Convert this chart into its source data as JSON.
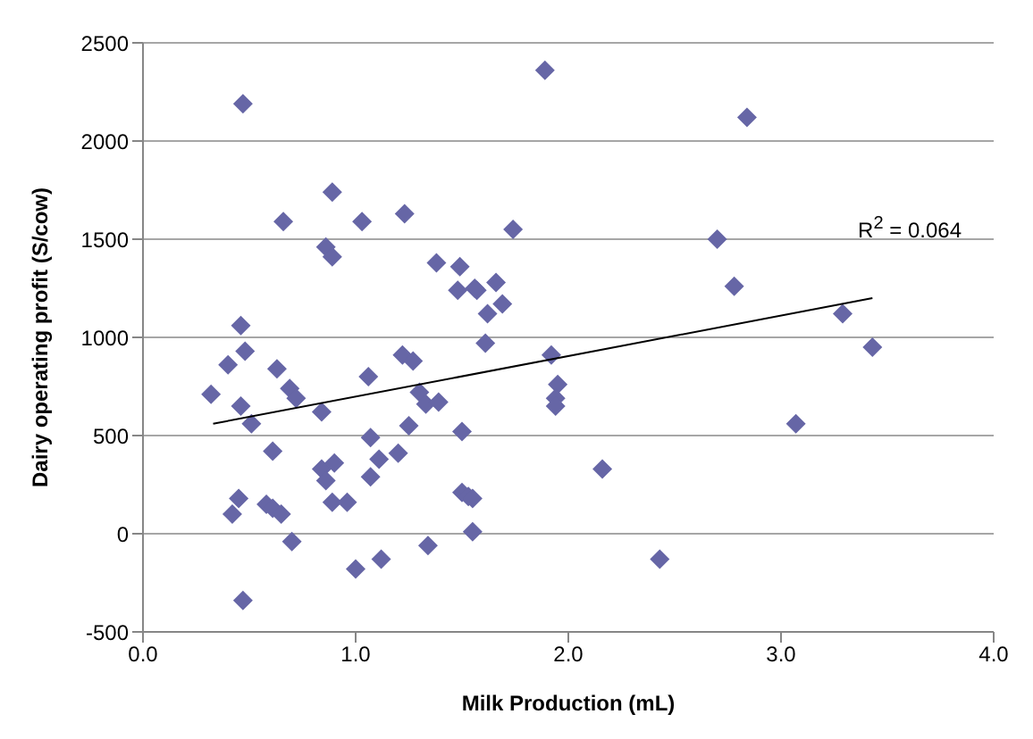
{
  "chart_data": {
    "type": "scatter",
    "xlabel": "Milk Production (mL)",
    "ylabel": "Dairy operating profit (S/cow)",
    "annotations": [
      "R$^{2}$ = 0.064"
    ],
    "xlim": [
      0,
      4
    ],
    "xticks": [
      {
        "value": 0,
        "label": "0.0"
      },
      {
        "value": 1,
        "label": "1.0"
      },
      {
        "value": 2,
        "label": "2.0"
      },
      {
        "value": 3,
        "label": "3.0"
      },
      {
        "value": 4,
        "label": "4.0"
      }
    ],
    "ylim": [
      -500,
      2500
    ],
    "yticks": [
      -500,
      0,
      500,
      1000,
      1500,
      2000,
      2500
    ],
    "grid": "y",
    "legend": false,
    "marker": "diamond",
    "series": [
      {
        "type": "scatter",
        "color": "#6666a6",
        "x": [
          0.47,
          0.66,
          0.89,
          0.86,
          0.89,
          1.03,
          1.23,
          1.38,
          1.49,
          1.48,
          1.57,
          1.66,
          1.69,
          1.62,
          1.74,
          0.46,
          1.61,
          1.89,
          2.84,
          2.7,
          2.78,
          3.29,
          1.56,
          3.43,
          1.92,
          1.95,
          1.94,
          1.94,
          3.07,
          2.16,
          2.43,
          0.32,
          0.4,
          0.48,
          0.46,
          0.51,
          0.63,
          0.69,
          0.72,
          0.61,
          0.84,
          1.06,
          1.22,
          1.27,
          1.3,
          1.33,
          1.39,
          1.25,
          1.5,
          1.07,
          1.11,
          1.2,
          1.07,
          0.84,
          0.86,
          0.9,
          0.89,
          0.96,
          0.45,
          0.42,
          0.58,
          0.61,
          0.65,
          0.7,
          1.0,
          1.12,
          1.34,
          0.47,
          1.5,
          1.53,
          1.55,
          1.55
        ],
        "values": [
          2190,
          1590,
          1740,
          1460,
          1410,
          1590,
          1630,
          1380,
          1360,
          1240,
          1240,
          1280,
          1170,
          1120,
          1550,
          1060,
          970,
          2360,
          2120,
          1500,
          1260,
          1120,
          1250,
          950,
          910,
          760,
          690,
          650,
          560,
          330,
          -130,
          710,
          860,
          930,
          650,
          560,
          840,
          740,
          690,
          420,
          620,
          800,
          910,
          880,
          720,
          660,
          670,
          550,
          520,
          490,
          380,
          410,
          290,
          330,
          270,
          360,
          160,
          160,
          180,
          100,
          150,
          130,
          100,
          -40,
          -180,
          -130,
          -60,
          -340,
          210,
          190,
          180,
          10
        ]
      },
      {
        "type": "line",
        "color": "#000000",
        "marker": "none",
        "x": [
          0.33,
          3.43
        ],
        "values": [
          560,
          1200
        ]
      }
    ]
  }
}
